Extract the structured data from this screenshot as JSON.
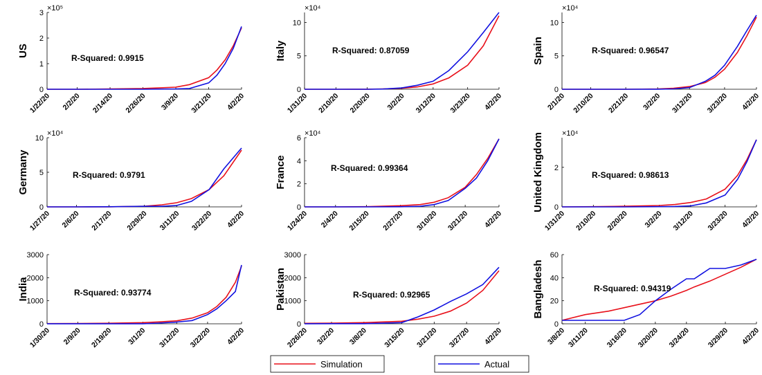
{
  "chart_data": [
    {
      "type": "line",
      "ylabel": "US",
      "annotation": "R-Squared: 0.9915",
      "y_multiplier": "×10⁵",
      "x": [
        "1/22/20",
        "2/2/20",
        "2/14/20",
        "2/26/20",
        "3/9/20",
        "3/14/20",
        "3/21/20",
        "3/24/20",
        "3/27/20",
        "3/30/20",
        "4/2/20"
      ],
      "series": [
        {
          "name": "Simulation",
          "color": "#e8101a",
          "values": [
            0,
            0,
            0.01,
            0.03,
            0.08,
            0.18,
            0.45,
            0.75,
            1.15,
            1.7,
            2.4
          ]
        },
        {
          "name": "Actual",
          "color": "#1010e0",
          "values": [
            0,
            0,
            0,
            0,
            0.01,
            0.03,
            0.25,
            0.55,
            1.0,
            1.6,
            2.45
          ]
        }
      ],
      "xticks": [
        "1/22/20",
        "2/2/20",
        "2/14/20",
        "2/26/20",
        "3/9/20",
        "3/21/20",
        "4/2/20"
      ],
      "ylim": [
        0,
        3
      ],
      "yticks": [
        0,
        1,
        2,
        3
      ]
    },
    {
      "type": "line",
      "ylabel": "Italy",
      "annotation": "R-Squared: 0.87059",
      "y_multiplier": "×10⁴",
      "x": [
        "1/31/20",
        "2/10/20",
        "2/20/20",
        "2/25/20",
        "3/2/20",
        "3/7/20",
        "3/12/20",
        "3/17/20",
        "3/23/20",
        "3/28/20",
        "4/2/20"
      ],
      "series": [
        {
          "name": "Simulation",
          "color": "#e8101a",
          "values": [
            0,
            0,
            0.01,
            0.05,
            0.15,
            0.35,
            0.8,
            1.7,
            3.6,
            6.5,
            11
          ]
        },
        {
          "name": "Actual",
          "color": "#1010e0",
          "values": [
            0,
            0,
            0,
            0.03,
            0.2,
            0.6,
            1.2,
            2.8,
            5.6,
            8.5,
            11.5
          ]
        }
      ],
      "xticks": [
        "1/31/20",
        "2/10/20",
        "2/20/20",
        "3/2/20",
        "3/12/20",
        "3/23/20",
        "4/2/20"
      ],
      "ylim": [
        0,
        11.5
      ],
      "yticks": [
        0,
        5,
        10
      ]
    },
    {
      "type": "line",
      "ylabel": "Spain",
      "annotation": "R-Squared: 0.96547",
      "y_multiplier": "×10⁴",
      "x": [
        "2/1/20",
        "2/10/20",
        "2/21/20",
        "3/2/20",
        "3/7/20",
        "3/12/20",
        "3/17/20",
        "3/20/20",
        "3/23/20",
        "3/27/20",
        "3/30/20",
        "4/2/20"
      ],
      "series": [
        {
          "name": "Simulation",
          "color": "#e8101a",
          "values": [
            0,
            0,
            0,
            0.05,
            0.15,
            0.4,
            1.0,
            1.8,
            3.0,
            5.5,
            8,
            10.8
          ]
        },
        {
          "name": "Actual",
          "color": "#1010e0",
          "values": [
            0,
            0,
            0,
            0.01,
            0.05,
            0.25,
            1.2,
            2.1,
            3.6,
            6.4,
            8.8,
            11.1
          ]
        }
      ],
      "xticks": [
        "2/1/20",
        "2/10/20",
        "2/21/20",
        "3/2/20",
        "3/12/20",
        "3/23/20",
        "4/2/20"
      ],
      "ylim": [
        0,
        11.5
      ],
      "yticks": [
        0,
        5,
        10
      ]
    },
    {
      "type": "line",
      "ylabel": "Germany",
      "annotation": "R-Squared: 0.9791",
      "y_multiplier": "×10⁴",
      "x": [
        "1/27/20",
        "2/6/20",
        "2/17/20",
        "2/29/20",
        "3/6/20",
        "3/11/20",
        "3/16/20",
        "3/22/20",
        "3/27/20",
        "4/2/20"
      ],
      "series": [
        {
          "name": "Simulation",
          "color": "#e8101a",
          "values": [
            0,
            0,
            0.01,
            0.1,
            0.3,
            0.6,
            1.2,
            2.5,
            4.5,
            8.2
          ]
        },
        {
          "name": "Actual",
          "color": "#1010e0",
          "values": [
            0,
            0,
            0.02,
            0.08,
            0.08,
            0.2,
            0.8,
            2.5,
            5.5,
            8.5
          ]
        }
      ],
      "xticks": [
        "1/27/20",
        "2/6/20",
        "2/17/20",
        "2/29/20",
        "3/11/20",
        "3/22/20",
        "4/2/20"
      ],
      "ylim": [
        0,
        10
      ],
      "yticks": [
        0,
        5,
        10
      ]
    },
    {
      "type": "line",
      "ylabel": "France",
      "annotation": "R-Squared: 0.99364",
      "y_multiplier": "×10⁴",
      "x": [
        "1/24/20",
        "2/4/20",
        "2/15/20",
        "2/27/20",
        "3/5/20",
        "3/10/20",
        "3/15/20",
        "3/21/20",
        "3/25/20",
        "3/29/20",
        "4/2/20"
      ],
      "series": [
        {
          "name": "Simulation",
          "color": "#e8101a",
          "values": [
            0,
            0,
            0.02,
            0.1,
            0.2,
            0.4,
            0.8,
            1.7,
            2.8,
            4.2,
            5.9
          ]
        },
        {
          "name": "Actual",
          "color": "#1010e0",
          "values": [
            0,
            0,
            0,
            0.01,
            0.05,
            0.2,
            0.55,
            1.6,
            2.5,
            4.0,
            5.9
          ]
        }
      ],
      "xticks": [
        "1/24/20",
        "2/4/20",
        "2/15/20",
        "2/27/20",
        "3/10/20",
        "3/21/20",
        "4/2/20"
      ],
      "ylim": [
        0,
        6
      ],
      "yticks": [
        0,
        2,
        4,
        6
      ]
    },
    {
      "type": "line",
      "ylabel": "United Kingdom",
      "annotation": "R-Squared: 0.98613",
      "y_multiplier": "×10⁴",
      "x": [
        "1/31/20",
        "2/10/20",
        "2/20/20",
        "3/2/20",
        "3/7/20",
        "3/12/20",
        "3/17/20",
        "3/23/20",
        "3/27/20",
        "3/30/20",
        "4/2/20"
      ],
      "series": [
        {
          "name": "Simulation",
          "color": "#e8101a",
          "values": [
            0,
            0.01,
            0.03,
            0.07,
            0.12,
            0.22,
            0.4,
            0.9,
            1.6,
            2.4,
            3.4
          ]
        },
        {
          "name": "Actual",
          "color": "#1010e0",
          "values": [
            0,
            0,
            0,
            0.01,
            0.02,
            0.05,
            0.2,
            0.6,
            1.4,
            2.3,
            3.4
          ]
        }
      ],
      "xticks": [
        "1/31/20",
        "2/10/20",
        "2/20/20",
        "3/2/20",
        "3/12/20",
        "3/23/20",
        "4/2/20"
      ],
      "ylim": [
        0,
        3.5
      ],
      "yticks": [
        0,
        2
      ]
    },
    {
      "type": "line",
      "ylabel": "India",
      "annotation": "R-Squared: 0.93774",
      "x": [
        "1/30/20",
        "2/9/20",
        "2/19/20",
        "3/1/20",
        "3/6/20",
        "3/12/20",
        "3/17/20",
        "3/22/20",
        "3/25/20",
        "3/28/20",
        "3/31/20",
        "4/2/20"
      ],
      "series": [
        {
          "name": "Simulation",
          "color": "#e8101a",
          "values": [
            10,
            15,
            25,
            50,
            80,
            130,
            250,
            480,
            750,
            1150,
            1800,
            2500
          ]
        },
        {
          "name": "Actual",
          "color": "#1010e0",
          "values": [
            3,
            3,
            3,
            3,
            30,
            75,
            140,
            400,
            650,
            1000,
            1400,
            2550
          ]
        }
      ],
      "xticks": [
        "1/30/20",
        "2/9/20",
        "2/19/20",
        "3/1/20",
        "3/12/20",
        "3/22/20",
        "4/2/20"
      ],
      "ylim": [
        0,
        3000
      ],
      "yticks": [
        0,
        1000,
        2000,
        3000
      ]
    },
    {
      "type": "line",
      "ylabel": "Pakistan",
      "annotation": "R-Squared: 0.92965",
      "x": [
        "2/26/20",
        "3/2/20",
        "3/8/20",
        "3/15/20",
        "3/18/20",
        "3/21/20",
        "3/24/20",
        "3/27/20",
        "3/30/20",
        "4/2/20"
      ],
      "series": [
        {
          "name": "Simulation",
          "color": "#e8101a",
          "values": [
            20,
            30,
            50,
            110,
            200,
            330,
            550,
            900,
            1450,
            2300
          ]
        },
        {
          "name": "Actual",
          "color": "#1010e0",
          "values": [
            2,
            5,
            6,
            50,
            300,
            600,
            970,
            1300,
            1700,
            2450
          ]
        }
      ],
      "xticks": [
        "2/26/20",
        "3/2/20",
        "3/8/20",
        "3/15/20",
        "3/21/20",
        "3/27/20",
        "4/2/20"
      ],
      "ylim": [
        0,
        3000
      ],
      "yticks": [
        0,
        1000,
        2000,
        3000
      ]
    },
    {
      "type": "line",
      "ylabel": "Bangladesh",
      "annotation": "R-Squared: 0.94319",
      "x": [
        "3/8/20",
        "3/11/20",
        "3/14/20",
        "3/16/20",
        "3/18/20",
        "3/20/20",
        "3/22/20",
        "3/24/20",
        "3/25/20",
        "3/27/20",
        "3/29/20",
        "3/31/20",
        "4/2/20"
      ],
      "series": [
        {
          "name": "Simulation",
          "color": "#e8101a",
          "values": [
            3,
            8,
            11,
            14,
            17,
            20,
            24,
            29,
            32,
            37,
            43,
            49,
            56
          ]
        },
        {
          "name": "Actual",
          "color": "#1010e0",
          "values": [
            3,
            3,
            3,
            3,
            8,
            20,
            30,
            39,
            39,
            48,
            48,
            51,
            56
          ]
        }
      ],
      "xticks": [
        "3/8/20",
        "3/11/20",
        "3/16/20",
        "3/20/20",
        "3/24/20",
        "3/29/20",
        "4/2/20"
      ],
      "ylim": [
        0,
        60
      ],
      "yticks": [
        0,
        20,
        40,
        60
      ]
    }
  ]
}
